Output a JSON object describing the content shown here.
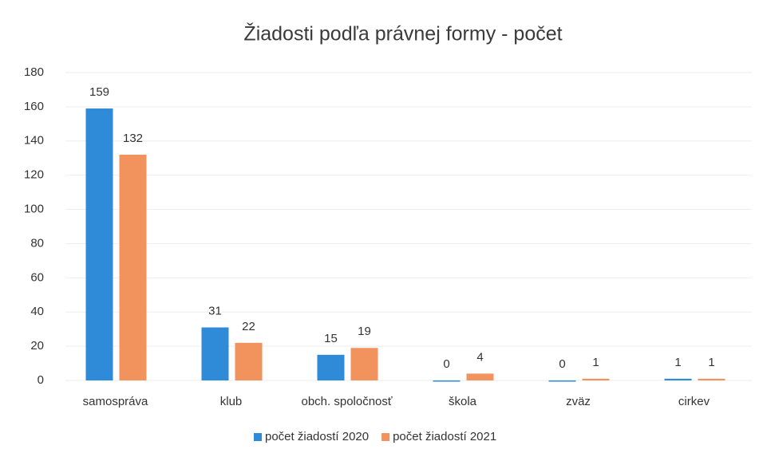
{
  "chart_data": {
    "type": "bar",
    "title": "Žiadosti podľa právnej formy - počet",
    "categories": [
      "samospráva",
      "klub",
      "obch. spoločnosť",
      "škola",
      "zväz",
      "cirkev"
    ],
    "series": [
      {
        "name": "počet žiadostí 2020",
        "color": "#2f8ad8",
        "values": [
          159,
          31,
          15,
          0,
          0,
          1
        ]
      },
      {
        "name": "počet žiadostí 2021",
        "color": "#f2925c",
        "values": [
          132,
          22,
          19,
          4,
          1,
          1
        ]
      }
    ],
    "ylim": [
      0,
      180
    ],
    "yticks": [
      0,
      20,
      40,
      60,
      80,
      100,
      120,
      140,
      160,
      180
    ],
    "grid": true,
    "legend": "bottom"
  }
}
